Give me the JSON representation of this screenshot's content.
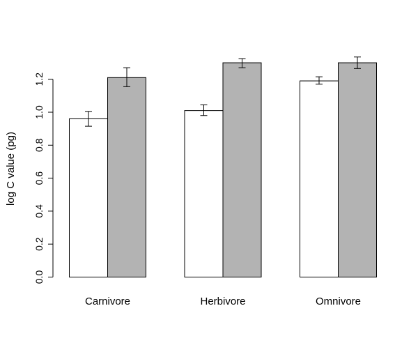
{
  "chart_data": {
    "type": "bar",
    "title": "",
    "xlabel": "",
    "ylabel": "log C value (pg)",
    "categories": [
      "Carnivore",
      "Herbivore",
      "Omnivore"
    ],
    "ylim": [
      0,
      1.2
    ],
    "yticks": [
      "0.0",
      "0.2",
      "0.4",
      "0.6",
      "0.8",
      "1.0",
      "1.2"
    ],
    "series": [
      {
        "color": "#ffffff",
        "values": [
          0.96,
          1.01,
          1.19
        ],
        "err_low": [
          0.915,
          0.98,
          1.17
        ],
        "err_high": [
          1.005,
          1.045,
          1.215
        ]
      },
      {
        "color": "#b3b3b3",
        "values": [
          1.21,
          1.3,
          1.3
        ],
        "err_low": [
          1.155,
          1.27,
          1.265
        ],
        "err_high": [
          1.27,
          1.325,
          1.335
        ]
      }
    ],
    "grid": false,
    "legend": "none"
  }
}
